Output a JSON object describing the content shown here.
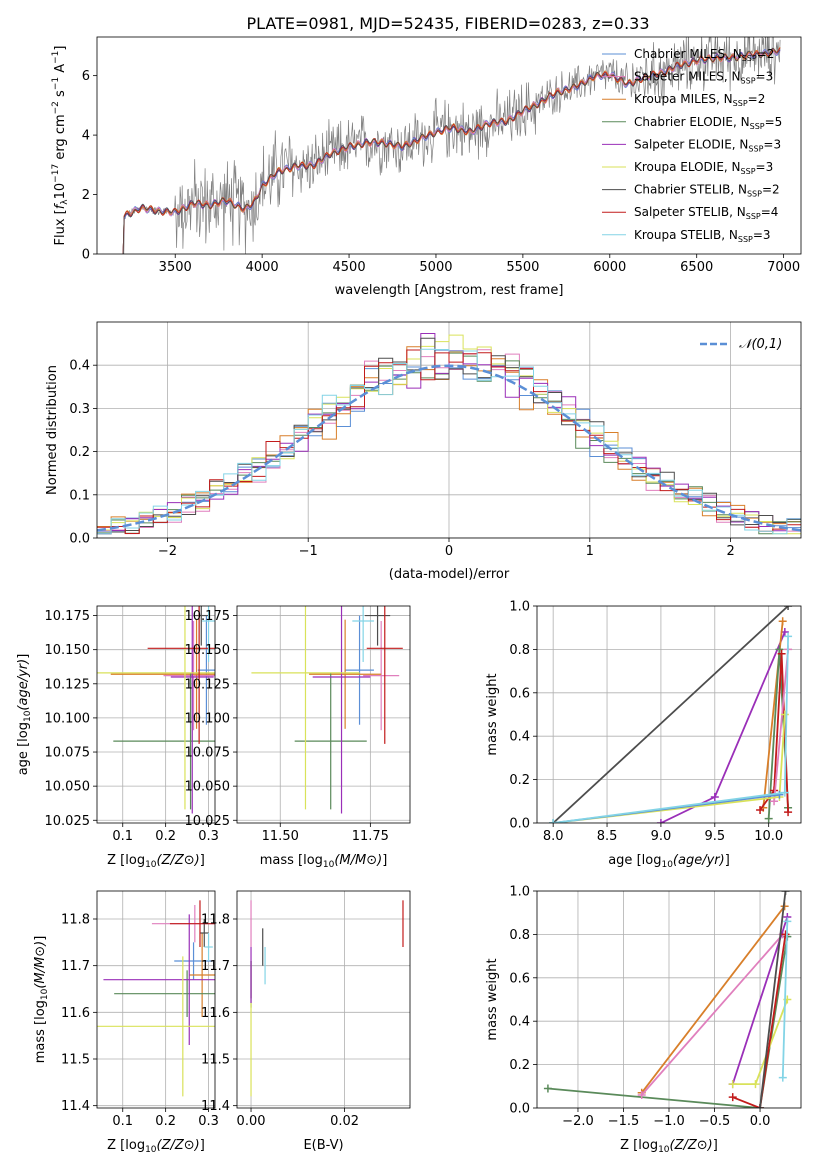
{
  "title": "PLATE=0981, MJD=52435, FIBERID=0283, z=0.33",
  "colors": {
    "Chabrier MILES": "#5b8fd6",
    "Salpeter MILES": "#e07fbd",
    "Kroupa MILES": "#d87f2a",
    "Chabrier ELODIE": "#5a8a5a",
    "Salpeter ELODIE": "#9a2fb8",
    "Kroupa ELODIE": "#d9e25a",
    "Chabrier STELIB": "#4d4d4d",
    "Salpeter STELIB": "#c21b1b",
    "Kroupa STELIB": "#83d4e6",
    "data": "#808080",
    "gauss": "#5b8fd6",
    "grid": "#b0b0b0"
  },
  "chart_data": [
    {
      "id": "spectrum",
      "type": "line",
      "xlabel": "wavelength [Angstrom, rest frame]",
      "ylabel": "Flux [f_λ10^-17 erg cm^-2 s^-1 A^-1]",
      "ylabel_main": "Flux [",
      "ylabel_f": "f",
      "ylabel_sub": "λ",
      "ylabel_mid": "10",
      "ylabel_e1": "−17",
      "ylabel_erg": " erg cm",
      "ylabel_e2": "−2",
      "ylabel_s": " s",
      "ylabel_e3": "−1",
      "ylabel_end": " A",
      "ylabel_e4": "−1",
      "ylabel_close": "]",
      "xlim": [
        3050,
        7100
      ],
      "ylim": [
        0,
        7.3
      ],
      "xticks": [
        3500,
        4000,
        4500,
        5000,
        5500,
        6000,
        6500,
        7000
      ],
      "yticks": [
        0,
        2,
        4,
        6
      ],
      "grid": false,
      "legend_position": "top-right",
      "legend": [
        {
          "name": "Chabrier MILES",
          "nssp": "2"
        },
        {
          "name": "Salpeter MILES",
          "nssp": "3"
        },
        {
          "name": "Kroupa MILES",
          "nssp": "2"
        },
        {
          "name": "Chabrier ELODIE",
          "nssp": "5"
        },
        {
          "name": "Salpeter ELODIE",
          "nssp": "3"
        },
        {
          "name": "Kroupa ELODIE",
          "nssp": "3"
        },
        {
          "name": "Chabrier STELIB",
          "nssp": "2"
        },
        {
          "name": "Salpeter STELIB",
          "nssp": "4"
        },
        {
          "name": "Kroupa STELIB",
          "nssp": "3"
        }
      ],
      "legend_nssp_prefix": "N",
      "legend_nssp_sub": "SSP",
      "continuum": [
        [
          3200,
          1.25
        ],
        [
          3300,
          1.55
        ],
        [
          3400,
          1.45
        ],
        [
          3500,
          1.4
        ],
        [
          3600,
          1.7
        ],
        [
          3700,
          1.65
        ],
        [
          3800,
          1.8
        ],
        [
          3900,
          1.5
        ],
        [
          3950,
          1.7
        ],
        [
          4000,
          2.3
        ],
        [
          4100,
          2.8
        ],
        [
          4200,
          2.95
        ],
        [
          4300,
          3.0
        ],
        [
          4400,
          3.4
        ],
        [
          4500,
          3.6
        ],
        [
          4600,
          3.75
        ],
        [
          4700,
          3.75
        ],
        [
          4800,
          3.6
        ],
        [
          4900,
          3.85
        ],
        [
          5000,
          4.1
        ],
        [
          5100,
          4.25
        ],
        [
          5200,
          4.1
        ],
        [
          5300,
          4.4
        ],
        [
          5400,
          4.45
        ],
        [
          5500,
          4.8
        ],
        [
          5600,
          5.1
        ],
        [
          5700,
          5.45
        ],
        [
          5800,
          5.6
        ],
        [
          5900,
          5.95
        ],
        [
          6000,
          6.05
        ],
        [
          6100,
          5.7
        ],
        [
          6200,
          5.95
        ],
        [
          6300,
          6.1
        ],
        [
          6400,
          6.35
        ],
        [
          6500,
          6.5
        ],
        [
          6600,
          6.6
        ],
        [
          6700,
          6.6
        ],
        [
          6800,
          6.7
        ],
        [
          6900,
          6.75
        ],
        [
          7000,
          6.85
        ]
      ]
    },
    {
      "id": "residuals",
      "type": "histogram",
      "xlabel": "(data-model)/error",
      "ylabel": "Normed distribution",
      "xlim": [
        -2.5,
        2.5
      ],
      "ylim": [
        0,
        0.5
      ],
      "xticks": [
        -2,
        -1,
        0,
        1,
        2
      ],
      "yticks": [
        0.0,
        0.1,
        0.2,
        0.3,
        0.4
      ],
      "grid": true,
      "legend_position": "top-right",
      "legend_label": "𝒩(0,1)",
      "gaussian": {
        "mean": 0,
        "sigma": 1
      }
    },
    {
      "id": "age_vs_Z",
      "type": "errorbar",
      "xlabel": "Z [log10(Z/Z⊙)]",
      "ylabel": "age [log10(age/yr)]",
      "xlim": [
        0.04,
        0.315
      ],
      "ylim": [
        10.023,
        10.182
      ],
      "xticks": [
        0.1,
        0.2,
        0.3
      ],
      "yticks": [
        10.025,
        10.05,
        10.075,
        10.1,
        10.125,
        10.15,
        10.175
      ],
      "grid": true,
      "points": [
        {
          "s": "Chabrier MILES",
          "x": 0.295,
          "xerr": 0.02,
          "y": 10.135,
          "yerr": 0.04
        },
        {
          "s": "Salpeter MILES",
          "x": 0.265,
          "xerr": 0.07,
          "y": 10.131,
          "yerr": 0.04
        },
        {
          "s": "Kroupa MILES",
          "x": 0.272,
          "xerr": 0.2,
          "y": 10.132,
          "yerr": 0.04
        },
        {
          "s": "Chabrier ELODIE",
          "x": 0.258,
          "xerr": 0.18,
          "y": 10.083,
          "yerr": 0.05
        },
        {
          "s": "Salpeter ELODIE",
          "x": 0.262,
          "xerr": 0.05,
          "y": 10.13,
          "yerr": 0.1
        },
        {
          "s": "Kroupa ELODIE",
          "x": 0.245,
          "xerr": 0.22,
          "y": 10.133,
          "yerr": 0.1
        },
        {
          "s": "Chabrier STELIB",
          "x": 0.283,
          "xerr": 0.018,
          "y": 10.175,
          "yerr": 0.022
        },
        {
          "s": "Salpeter STELIB",
          "x": 0.278,
          "xerr": 0.12,
          "y": 10.151,
          "yerr": 0.07
        },
        {
          "s": "Kroupa STELIB",
          "x": 0.3,
          "xerr": 0.015,
          "y": 10.171,
          "yerr": 0.03
        }
      ]
    },
    {
      "id": "age_vs_mass",
      "type": "errorbar",
      "xlabel": "mass [log10(M/M⊙)]",
      "xlim": [
        11.38,
        11.86
      ],
      "ylim": [
        10.023,
        10.182
      ],
      "xticks": [
        11.5,
        11.75
      ],
      "yticks": [
        10.025,
        10.05,
        10.075,
        10.1,
        10.125,
        10.15,
        10.175
      ],
      "grid": true,
      "points": [
        {
          "s": "Chabrier MILES",
          "x": 11.72,
          "xerr": 0.04,
          "y": 10.135,
          "yerr": 0.04
        },
        {
          "s": "Salpeter MILES",
          "x": 11.78,
          "xerr": 0.05,
          "y": 10.131,
          "yerr": 0.04
        },
        {
          "s": "Kroupa MILES",
          "x": 11.68,
          "xerr": 0.1,
          "y": 10.132,
          "yerr": 0.04
        },
        {
          "s": "Chabrier ELODIE",
          "x": 11.64,
          "xerr": 0.1,
          "y": 10.083,
          "yerr": 0.05
        },
        {
          "s": "Salpeter ELODIE",
          "x": 11.67,
          "xerr": 0.08,
          "y": 10.13,
          "yerr": 0.1
        },
        {
          "s": "Kroupa ELODIE",
          "x": 11.57,
          "xerr": 0.15,
          "y": 10.133,
          "yerr": 0.1
        },
        {
          "s": "Chabrier STELIB",
          "x": 11.77,
          "xerr": 0.035,
          "y": 10.175,
          "yerr": 0.022
        },
        {
          "s": "Salpeter STELIB",
          "x": 11.79,
          "xerr": 0.05,
          "y": 10.151,
          "yerr": 0.07
        },
        {
          "s": "Kroupa STELIB",
          "x": 11.73,
          "xerr": 0.03,
          "y": 10.171,
          "yerr": 0.03
        }
      ]
    },
    {
      "id": "massweight_vs_age",
      "type": "line",
      "xlabel": "age [log10(age/yr)]",
      "ylabel": "mass weight",
      "xlim": [
        7.85,
        10.3
      ],
      "ylim": [
        0,
        1.0
      ],
      "xticks": [
        8.0,
        8.5,
        9.0,
        9.5,
        10.0
      ],
      "yticks": [
        0.0,
        0.2,
        0.4,
        0.6,
        0.8,
        1.0
      ],
      "grid": true,
      "series": [
        {
          "s": "Chabrier STELIB",
          "x": [
            8.0,
            10.18
          ],
          "y": [
            0.0,
            1.0
          ]
        },
        {
          "s": "Salpeter ELODIE",
          "x": [
            9.0,
            9.5,
            10.15
          ],
          "y": [
            0.0,
            0.12,
            0.88
          ]
        },
        {
          "s": "Kroupa MILES",
          "x": [
            9.95,
            10.13
          ],
          "y": [
            0.07,
            0.93
          ]
        },
        {
          "s": "Chabrier ELODIE",
          "x": [
            10.0,
            10.1,
            10.18
          ],
          "y": [
            0.02,
            0.8,
            0.07
          ]
        },
        {
          "s": "Salpeter STELIB",
          "x": [
            9.92,
            10.05,
            10.12,
            10.18
          ],
          "y": [
            0.06,
            0.15,
            0.78,
            0.05
          ]
        },
        {
          "s": "Salpeter MILES",
          "x": [
            10.05,
            10.18
          ],
          "y": [
            0.1,
            0.8
          ]
        },
        {
          "s": "Kroupa ELODIE",
          "x": [
            8.0,
            10.1,
            10.15
          ],
          "y": [
            0.0,
            0.12,
            0.5
          ]
        },
        {
          "s": "Chabrier MILES",
          "x": [
            8.0,
            10.1
          ],
          "y": [
            0.0,
            0.13
          ]
        },
        {
          "s": "Kroupa STELIB",
          "x": [
            8.0,
            10.15,
            10.18
          ],
          "y": [
            0.0,
            0.14,
            0.86
          ]
        }
      ]
    },
    {
      "id": "mass_vs_Z",
      "type": "errorbar",
      "xlabel": "Z [log10(Z/Z⊙)]",
      "ylabel": "mass [log10(M/M⊙)]",
      "xlim": [
        0.04,
        0.315
      ],
      "ylim": [
        11.395,
        11.86
      ],
      "xticks": [
        0.1,
        0.2,
        0.3
      ],
      "yticks": [
        11.4,
        11.5,
        11.6,
        11.7,
        11.8
      ],
      "grid": true,
      "points": [
        {
          "s": "Chabrier MILES",
          "x": 0.265,
          "xerr": 0.045,
          "y": 11.71,
          "yerr": 0.04
        },
        {
          "s": "Salpeter MILES",
          "x": 0.268,
          "xerr": 0.1,
          "y": 11.79,
          "yerr": 0.04
        },
        {
          "s": "Kroupa MILES",
          "x": 0.285,
          "xerr": 0.03,
          "y": 11.68,
          "yerr": 0.09
        },
        {
          "s": "Chabrier ELODIE",
          "x": 0.25,
          "xerr": 0.17,
          "y": 11.64,
          "yerr": 0.05
        },
        {
          "s": "Salpeter ELODIE",
          "x": 0.255,
          "xerr": 0.2,
          "y": 11.67,
          "yerr": 0.14
        },
        {
          "s": "Kroupa ELODIE",
          "x": 0.24,
          "xerr": 0.2,
          "y": 11.57,
          "yerr": 0.15
        },
        {
          "s": "Chabrier STELIB",
          "x": 0.29,
          "xerr": 0.01,
          "y": 11.77,
          "yerr": 0.03
        },
        {
          "s": "Salpeter STELIB",
          "x": 0.28,
          "xerr": 0.07,
          "y": 11.79,
          "yerr": 0.05
        },
        {
          "s": "Kroupa STELIB",
          "x": 0.3,
          "xerr": 0.01,
          "y": 11.74,
          "yerr": 0.03
        }
      ]
    },
    {
      "id": "mass_vs_EBV",
      "type": "errorbar",
      "xlabel": "E(B-V)",
      "xlim": [
        -0.003,
        0.034
      ],
      "ylim": [
        11.395,
        11.86
      ],
      "xticks": [
        0.0,
        0.02
      ],
      "yticks": [
        11.4,
        11.5,
        11.6,
        11.7,
        11.8
      ],
      "grid": true,
      "points": [
        {
          "s": "Chabrier MILES",
          "x": 0.0,
          "y": 11.67,
          "yerr": 0.04
        },
        {
          "s": "Salpeter MILES",
          "x": 0.0,
          "y": 11.79,
          "yerr": 0.05
        },
        {
          "s": "Kroupa MILES",
          "x": 0.0,
          "y": 11.67,
          "yerr": 0.04
        },
        {
          "s": "Chabrier ELODIE",
          "x": 0.0,
          "y": 11.66,
          "yerr": 0.05
        },
        {
          "s": "Salpeter ELODIE",
          "x": 0.0,
          "y": 11.68,
          "yerr": 0.06
        },
        {
          "s": "Kroupa ELODIE",
          "x": 0.0,
          "y": 11.52,
          "yerr": 0.1
        },
        {
          "s": "Chabrier STELIB",
          "x": 0.0025,
          "y": 11.74,
          "yerr": 0.04
        },
        {
          "s": "Salpeter STELIB",
          "x": 0.0325,
          "y": 11.79,
          "yerr": 0.05
        },
        {
          "s": "Kroupa STELIB",
          "x": 0.003,
          "y": 11.7,
          "yerr": 0.04
        }
      ]
    },
    {
      "id": "massweight_vs_Z",
      "type": "line",
      "xlabel": "Z [log10(Z/Z⊙)]",
      "ylabel": "mass weight",
      "xlim": [
        -2.45,
        0.45
      ],
      "ylim": [
        0,
        1.0
      ],
      "xticks": [
        -2.0,
        -1.5,
        -1.0,
        -0.5,
        0.0
      ],
      "yticks": [
        0.0,
        0.2,
        0.4,
        0.6,
        0.8,
        1.0
      ],
      "grid": true,
      "series": [
        {
          "s": "Chabrier ELODIE",
          "x": [
            -2.33,
            0.0,
            0.3
          ],
          "y": [
            0.09,
            0.0,
            0.79
          ]
        },
        {
          "s": "Kroupa MILES",
          "x": [
            -1.3,
            0.27
          ],
          "y": [
            0.07,
            0.93
          ]
        },
        {
          "s": "Salpeter MILES",
          "x": [
            -1.3,
            0.25
          ],
          "y": [
            0.06,
            0.8
          ]
        },
        {
          "s": "Salpeter ELODIE",
          "x": [
            -0.3,
            0.3
          ],
          "y": [
            0.11,
            0.88
          ]
        },
        {
          "s": "Kroupa ELODIE",
          "x": [
            -0.3,
            -0.05,
            0.3
          ],
          "y": [
            0.11,
            0.11,
            0.5
          ]
        },
        {
          "s": "Salpeter STELIB",
          "x": [
            -0.3,
            0.0,
            0.28
          ],
          "y": [
            0.05,
            0.0,
            0.8
          ]
        },
        {
          "s": "Chabrier STELIB",
          "x": [
            0.0,
            0.28
          ],
          "y": [
            0.0,
            1.0
          ]
        },
        {
          "s": "Kroupa STELIB",
          "x": [
            0.25,
            0.3
          ],
          "y": [
            0.14,
            0.86
          ]
        }
      ]
    }
  ]
}
